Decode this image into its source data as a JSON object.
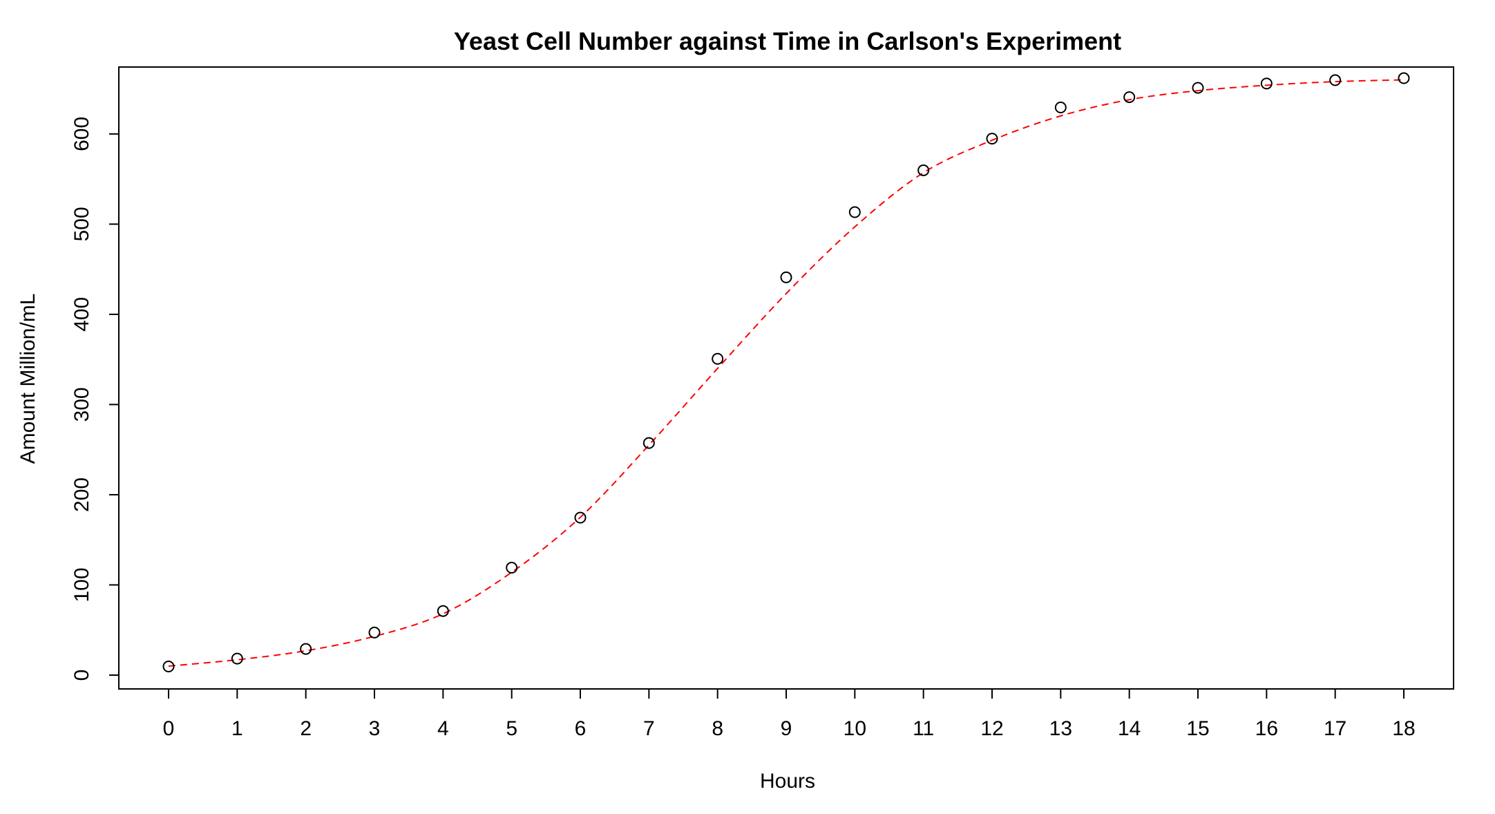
{
  "chart_data": {
    "type": "scatter",
    "title": "Yeast Cell Number against Time in Carlson's Experiment",
    "xlabel": "Hours",
    "ylabel": "Amount Million/mL",
    "xlim": [
      0,
      18
    ],
    "ylim": [
      0,
      665
    ],
    "xticks": [
      0,
      1,
      2,
      3,
      4,
      5,
      6,
      7,
      8,
      9,
      10,
      11,
      12,
      13,
      14,
      15,
      16,
      17,
      18
    ],
    "yticks": [
      0,
      100,
      200,
      300,
      400,
      500,
      600
    ],
    "grid": false,
    "series": [
      {
        "kind": "points",
        "marker": "open-circle",
        "color": "#000000",
        "x": [
          0,
          1,
          2,
          3,
          4,
          5,
          6,
          7,
          8,
          9,
          10,
          11,
          12,
          13,
          14,
          15,
          16,
          17,
          18
        ],
        "y": [
          9.6,
          18.3,
          29.0,
          47.2,
          71.1,
          119.1,
          174.6,
          257.3,
          350.7,
          441.0,
          513.3,
          559.7,
          594.8,
          629.4,
          640.8,
          651.1,
          655.9,
          659.6,
          661.8
        ]
      },
      {
        "kind": "fitted-curve",
        "line_style": "dashed",
        "color": "#ff0000",
        "x": [
          0,
          1,
          2,
          3,
          4,
          5,
          6,
          7,
          8,
          9,
          10,
          11,
          12,
          13,
          14,
          15,
          16,
          17,
          18
        ],
        "y": [
          10,
          17,
          27,
          43,
          68,
          114,
          175,
          255,
          340,
          423,
          497,
          557,
          593,
          620,
          638,
          648,
          654,
          658,
          660
        ]
      }
    ]
  }
}
